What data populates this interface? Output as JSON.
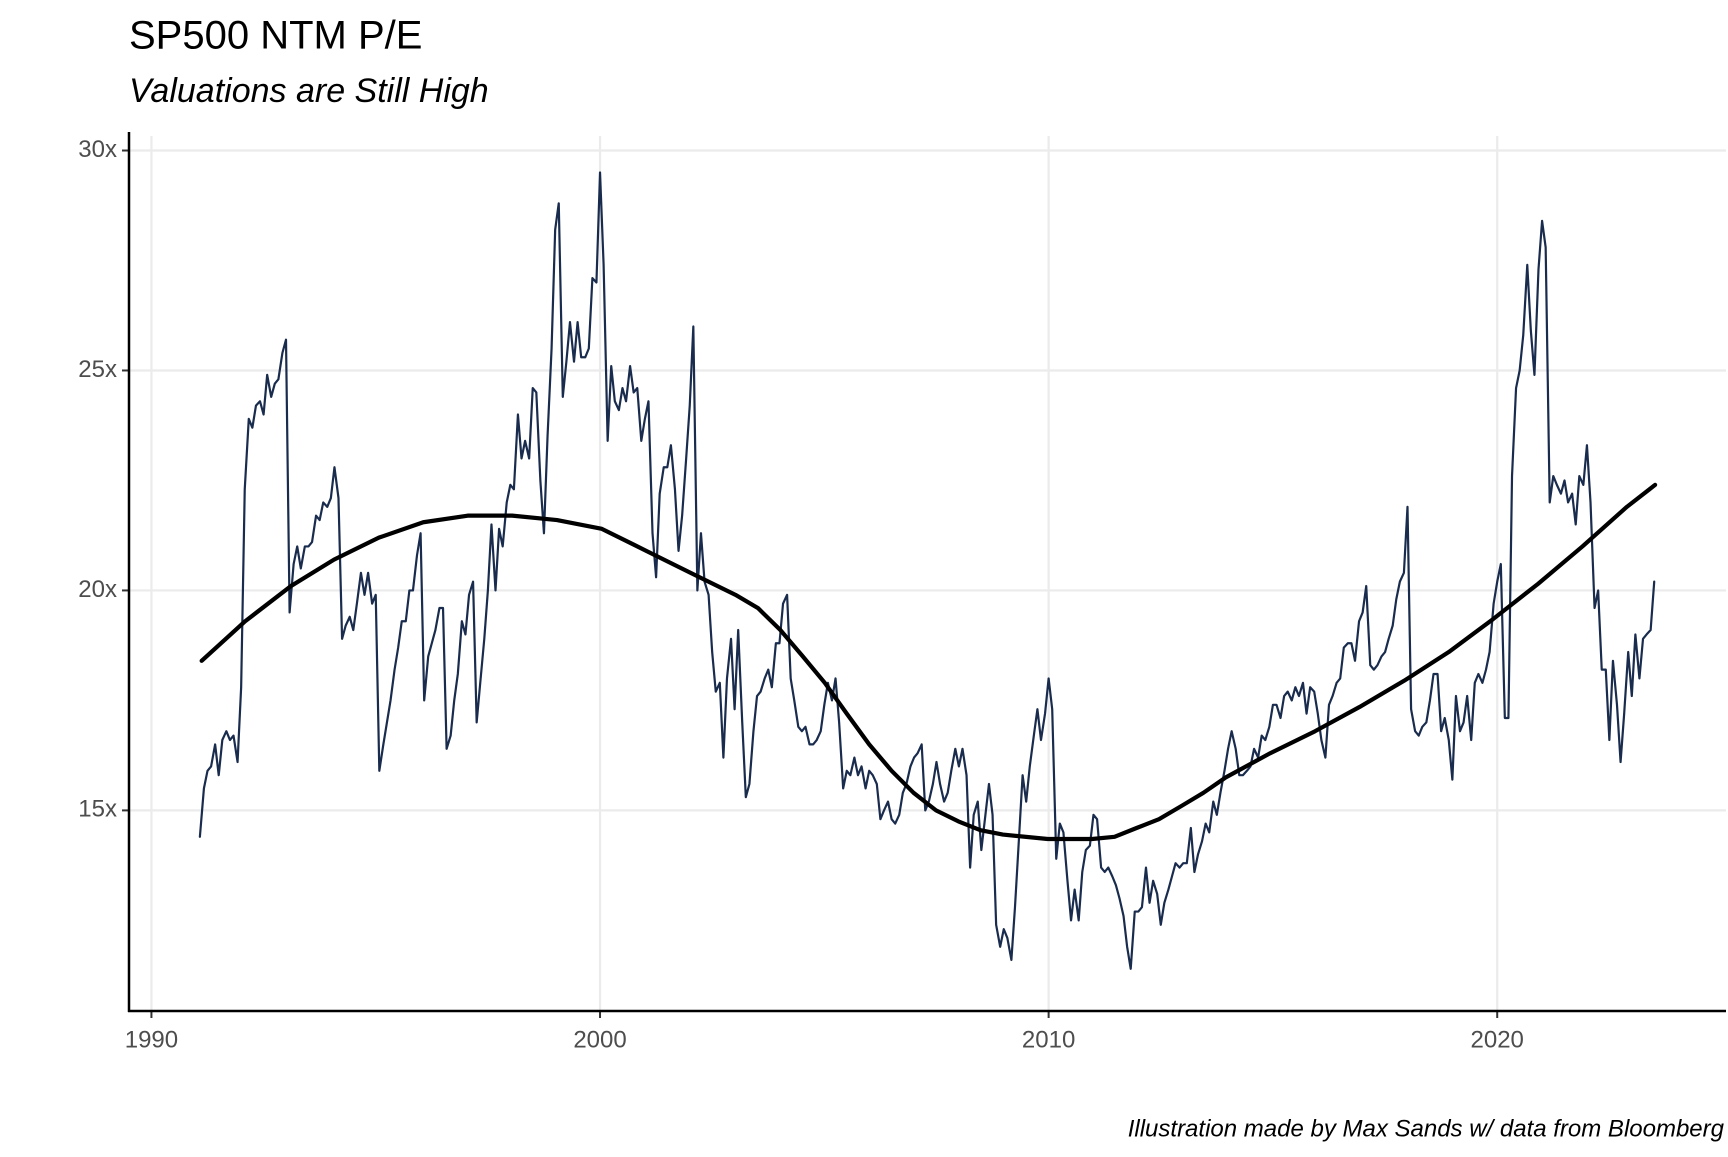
{
  "chart_data": {
    "type": "line",
    "title": "SP500 NTM P/E",
    "subtitle": "Valuations are Still High",
    "caption": "Illustration made by Max Sands w/ data from Bloomberg",
    "xlim": [
      1989.5,
      2025.1
    ],
    "ylim": [
      10.44,
      30.33
    ],
    "xticks": [
      1990,
      2000,
      2010,
      2020
    ],
    "yticks": [
      {
        "value": 15,
        "label": "15x"
      },
      {
        "value": 20,
        "label": "20x"
      },
      {
        "value": 25,
        "label": "25x"
      },
      {
        "value": 30,
        "label": "30x"
      }
    ],
    "grid": true,
    "series": [
      {
        "color": "#1a2c4e",
        "x": [
          1991.08,
          1991.17,
          1991.25,
          1991.33,
          1991.42,
          1991.5,
          1991.58,
          1991.67,
          1991.75,
          1991.83,
          1991.92,
          1992.0,
          1992.08,
          1992.17,
          1992.25,
          1992.33,
          1992.42,
          1992.5,
          1992.58,
          1992.67,
          1992.75,
          1992.83,
          1992.92,
          1993.0,
          1993.08,
          1993.17,
          1993.25,
          1993.33,
          1993.42,
          1993.5,
          1993.58,
          1993.67,
          1993.75,
          1993.83,
          1993.92,
          1994.0,
          1994.08,
          1994.17,
          1994.25,
          1994.33,
          1994.42,
          1994.5,
          1994.58,
          1994.67,
          1994.75,
          1994.83,
          1994.92,
          1995.0,
          1995.08,
          1995.17,
          1995.25,
          1995.33,
          1995.42,
          1995.5,
          1995.58,
          1995.67,
          1995.75,
          1995.83,
          1995.92,
          1996.0,
          1996.08,
          1996.17,
          1996.25,
          1996.33,
          1996.42,
          1996.5,
          1996.58,
          1996.67,
          1996.75,
          1996.83,
          1996.92,
          1997.0,
          1997.08,
          1997.17,
          1997.25,
          1997.33,
          1997.42,
          1997.5,
          1997.58,
          1997.67,
          1997.75,
          1997.83,
          1997.92,
          1998.0,
          1998.08,
          1998.17,
          1998.25,
          1998.33,
          1998.42,
          1998.5,
          1998.58,
          1998.67,
          1998.75,
          1998.83,
          1998.92,
          1999.0,
          1999.08,
          1999.17,
          1999.25,
          1999.33,
          1999.42,
          1999.5,
          1999.58,
          1999.67,
          1999.75,
          1999.83,
          1999.92,
          2000.0,
          2000.08,
          2000.17,
          2000.25,
          2000.33,
          2000.42,
          2000.5,
          2000.58,
          2000.67,
          2000.75,
          2000.83,
          2000.92,
          2001.0,
          2001.08,
          2001.17,
          2001.25,
          2001.33,
          2001.42,
          2001.5,
          2001.58,
          2001.67,
          2001.75,
          2001.83,
          2001.92,
          2002.0,
          2002.08,
          2002.17,
          2002.25,
          2002.33,
          2002.42,
          2002.5,
          2002.58,
          2002.67,
          2002.75,
          2002.83,
          2002.92,
          2003.0,
          2003.08,
          2003.17,
          2003.25,
          2003.33,
          2003.42,
          2003.5,
          2003.58,
          2003.67,
          2003.75,
          2003.83,
          2003.92,
          2004.0,
          2004.08,
          2004.17,
          2004.25,
          2004.33,
          2004.42,
          2004.5,
          2004.58,
          2004.67,
          2004.75,
          2004.83,
          2004.92,
          2005.0,
          2005.08,
          2005.17,
          2005.25,
          2005.33,
          2005.42,
          2005.5,
          2005.58,
          2005.67,
          2005.75,
          2005.83,
          2005.92,
          2006.0,
          2006.08,
          2006.17,
          2006.25,
          2006.33,
          2006.42,
          2006.5,
          2006.58,
          2006.67,
          2006.75,
          2006.83,
          2006.92,
          2007.0,
          2007.08,
          2007.17,
          2007.25,
          2007.33,
          2007.42,
          2007.5,
          2007.58,
          2007.67,
          2007.75,
          2007.83,
          2007.92,
          2008.0,
          2008.08,
          2008.17,
          2008.25,
          2008.33,
          2008.42,
          2008.5,
          2008.58,
          2008.67,
          2008.75,
          2008.83,
          2008.92,
          2009.0,
          2009.08,
          2009.17,
          2009.25,
          2009.33,
          2009.42,
          2009.5,
          2009.58,
          2009.67,
          2009.75,
          2009.83,
          2009.92,
          2010.0,
          2010.08,
          2010.17,
          2010.25,
          2010.33,
          2010.42,
          2010.5,
          2010.58,
          2010.67,
          2010.75,
          2010.83,
          2010.92,
          2011.0,
          2011.08,
          2011.17,
          2011.25,
          2011.33,
          2011.42,
          2011.5,
          2011.58,
          2011.67,
          2011.75,
          2011.83,
          2011.92,
          2012.0,
          2012.08,
          2012.17,
          2012.25,
          2012.33,
          2012.42,
          2012.5,
          2012.58,
          2012.67,
          2012.75,
          2012.83,
          2012.92,
          2013.0,
          2013.08,
          2013.17,
          2013.25,
          2013.33,
          2013.42,
          2013.5,
          2013.58,
          2013.67,
          2013.75,
          2013.83,
          2013.92,
          2014.0,
          2014.08,
          2014.17,
          2014.25,
          2014.33,
          2014.42,
          2014.5,
          2014.58,
          2014.67,
          2014.75,
          2014.83,
          2014.92,
          2015.0,
          2015.08,
          2015.17,
          2015.25,
          2015.33,
          2015.42,
          2015.5,
          2015.58,
          2015.67,
          2015.75,
          2015.83,
          2015.92,
          2016.0,
          2016.08,
          2016.17,
          2016.25,
          2016.33,
          2016.42,
          2016.5,
          2016.58,
          2016.67,
          2016.75,
          2016.83,
          2016.92,
          2017.0,
          2017.08,
          2017.17,
          2017.25,
          2017.33,
          2017.42,
          2017.5,
          2017.58,
          2017.67,
          2017.75,
          2017.83,
          2017.92,
          2018.0,
          2018.08,
          2018.17,
          2018.25,
          2018.33,
          2018.42,
          2018.5,
          2018.58,
          2018.67,
          2018.75,
          2018.83,
          2018.92,
          2019.0,
          2019.08,
          2019.17,
          2019.25,
          2019.33,
          2019.42,
          2019.5,
          2019.58,
          2019.67,
          2019.75,
          2019.83,
          2019.92,
          2020.0,
          2020.08,
          2020.17,
          2020.25,
          2020.33,
          2020.42,
          2020.5,
          2020.58,
          2020.67,
          2020.75,
          2020.83,
          2020.92,
          2021.0,
          2021.08,
          2021.17,
          2021.25,
          2021.33,
          2021.42,
          2021.5,
          2021.58,
          2021.67,
          2021.75,
          2021.83,
          2021.92,
          2022.0,
          2022.08,
          2022.17,
          2022.25,
          2022.33,
          2022.42,
          2022.5,
          2022.58,
          2022.67,
          2022.75,
          2022.83,
          2022.92,
          2023.0,
          2023.08,
          2023.17,
          2023.25,
          2023.33,
          2023.42,
          2023.5
        ],
        "values": [
          14.4,
          15.5,
          15.9,
          16.0,
          16.5,
          15.8,
          16.6,
          16.8,
          16.6,
          16.7,
          16.1,
          17.8,
          22.3,
          23.9,
          23.7,
          24.2,
          24.3,
          24.0,
          24.9,
          24.4,
          24.7,
          24.8,
          25.4,
          25.7,
          19.5,
          20.6,
          21.0,
          20.5,
          21.0,
          21.0,
          21.1,
          21.7,
          21.6,
          22.0,
          21.9,
          22.1,
          22.8,
          22.1,
          18.9,
          19.2,
          19.4,
          19.1,
          19.7,
          20.4,
          19.9,
          20.4,
          19.7,
          19.9,
          15.9,
          16.5,
          17.0,
          17.5,
          18.2,
          18.7,
          19.3,
          19.3,
          20.0,
          20.0,
          20.8,
          21.3,
          17.5,
          18.5,
          18.8,
          19.1,
          19.6,
          19.6,
          16.4,
          16.7,
          17.5,
          18.1,
          19.3,
          19.0,
          19.9,
          20.2,
          17.0,
          17.9,
          18.9,
          20.0,
          21.5,
          20.0,
          21.4,
          21.0,
          22.0,
          22.4,
          22.3,
          24.0,
          23.0,
          23.4,
          23.0,
          24.6,
          24.5,
          22.5,
          21.3,
          23.5,
          25.5,
          28.2,
          28.8,
          24.4,
          25.2,
          26.1,
          25.2,
          26.1,
          25.3,
          25.3,
          25.5,
          27.1,
          27.0,
          29.5,
          27.4,
          23.4,
          25.1,
          24.3,
          24.1,
          24.6,
          24.3,
          25.1,
          24.5,
          24.6,
          23.4,
          23.9,
          24.3,
          21.3,
          20.3,
          22.2,
          22.8,
          22.8,
          23.3,
          22.3,
          20.9,
          21.7,
          23.0,
          24.2,
          26.0,
          20.0,
          21.3,
          20.2,
          19.9,
          18.6,
          17.7,
          17.9,
          16.2,
          18.0,
          18.9,
          17.3,
          19.1,
          17.0,
          15.3,
          15.6,
          16.8,
          17.6,
          17.7,
          18.0,
          18.2,
          17.8,
          18.8,
          18.8,
          19.7,
          19.9,
          18.0,
          17.5,
          16.9,
          16.8,
          16.9,
          16.5,
          16.5,
          16.6,
          16.8,
          17.4,
          17.9,
          17.5,
          18.0,
          17.0,
          15.5,
          15.9,
          15.8,
          16.2,
          15.8,
          16.0,
          15.5,
          15.9,
          15.8,
          15.6,
          14.8,
          15.0,
          15.2,
          14.8,
          14.7,
          14.9,
          15.4,
          15.6,
          16.0,
          16.2,
          16.3,
          16.5,
          15.0,
          15.2,
          15.6,
          16.1,
          15.6,
          15.2,
          15.4,
          15.9,
          16.4,
          16.0,
          16.4,
          15.8,
          13.7,
          14.9,
          15.2,
          14.1,
          14.8,
          15.6,
          14.9,
          12.4,
          11.9,
          12.3,
          12.1,
          11.6,
          12.8,
          14.2,
          15.8,
          15.2,
          16.0,
          16.7,
          17.3,
          16.6,
          17.2,
          18.0,
          17.3,
          13.9,
          14.7,
          14.5,
          13.4,
          12.5,
          13.2,
          12.5,
          13.6,
          14.1,
          14.2,
          14.9,
          14.8,
          13.7,
          13.6,
          13.7,
          13.5,
          13.3,
          13.0,
          12.6,
          11.9,
          11.4,
          12.7,
          12.7,
          12.8,
          13.7,
          12.9,
          13.4,
          13.1,
          12.4,
          12.9,
          13.2,
          13.5,
          13.8,
          13.7,
          13.8,
          13.8,
          14.6,
          13.6,
          14.0,
          14.3,
          14.7,
          14.5,
          15.2,
          14.9,
          15.4,
          15.9,
          16.4,
          16.8,
          16.4,
          15.8,
          15.8,
          15.9,
          16.0,
          16.4,
          16.2,
          16.7,
          16.6,
          16.9,
          17.4,
          17.4,
          17.1,
          17.6,
          17.7,
          17.5,
          17.8,
          17.6,
          17.9,
          17.2,
          17.8,
          17.7,
          17.2,
          16.6,
          16.2,
          17.4,
          17.6,
          17.9,
          18.0,
          18.7,
          18.8,
          18.8,
          18.4,
          19.3,
          19.5,
          20.1,
          18.3,
          18.2,
          18.3,
          18.5,
          18.6,
          18.9,
          19.2,
          19.8,
          20.2,
          20.4,
          21.9,
          17.3,
          16.8,
          16.7,
          16.9,
          17.0,
          17.5,
          18.1,
          18.1,
          16.8,
          17.1,
          16.6,
          15.7,
          17.6,
          16.8,
          17.0,
          17.6,
          16.6,
          17.9,
          18.1,
          17.9,
          18.2,
          18.6,
          19.7,
          20.2,
          20.6,
          17.1,
          17.1,
          22.6,
          24.6,
          25.0,
          25.8,
          27.4,
          25.9,
          24.9,
          27.3,
          28.4,
          27.8,
          22.0,
          22.6,
          22.4,
          22.2,
          22.5,
          22.0,
          22.2,
          21.5,
          22.6,
          22.4,
          23.3,
          22.0,
          19.6,
          20.0,
          18.2,
          18.2,
          16.6,
          18.4,
          17.4,
          16.1,
          17.2,
          18.6,
          17.6,
          19.0,
          18.0,
          18.9,
          19.0,
          19.1,
          20.2
        ]
      },
      {
        "color": "#000000",
        "x": [
          1991.12,
          1992.09,
          1993.11,
          1994.07,
          1995.07,
          1996.06,
          1997.05,
          1998.04,
          1999.04,
          2000.04,
          2001.03,
          2002.02,
          2003.02,
          2003.52,
          2004.02,
          2004.52,
          2005.01,
          2005.5,
          2006.0,
          2006.5,
          2006.99,
          2007.49,
          2007.99,
          2008.48,
          2008.98,
          2009.98,
          2010.97,
          2011.47,
          2011.96,
          2012.46,
          2012.96,
          2013.45,
          2013.95,
          2014.94,
          2015.94,
          2016.93,
          2017.93,
          2018.92,
          2019.91,
          2020.91,
          2021.9,
          2022.89,
          2023.52
        ],
        "values": [
          18.4,
          19.3,
          20.1,
          20.7,
          21.2,
          21.55,
          21.7,
          21.7,
          21.6,
          21.4,
          20.9,
          20.4,
          19.9,
          19.6,
          19.1,
          18.5,
          17.9,
          17.2,
          16.5,
          15.9,
          15.4,
          15.0,
          14.75,
          14.55,
          14.45,
          14.35,
          14.35,
          14.4,
          14.6,
          14.8,
          15.1,
          15.4,
          15.75,
          16.3,
          16.8,
          17.35,
          17.95,
          18.6,
          19.35,
          20.15,
          21.0,
          21.9,
          22.4
        ]
      }
    ]
  }
}
